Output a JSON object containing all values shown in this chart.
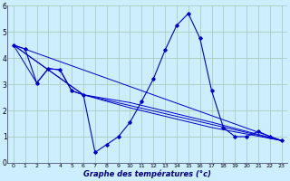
{
  "title": "Graphe des températures (°c)",
  "background_color": "#cceeff",
  "grid_color": "#aaccbb",
  "line_color": "#0000cc",
  "xlim": [
    -0.5,
    23.5
  ],
  "ylim": [
    0,
    6
  ],
  "xticks": [
    0,
    1,
    2,
    3,
    4,
    5,
    6,
    7,
    8,
    9,
    10,
    11,
    12,
    13,
    14,
    15,
    16,
    17,
    18,
    19,
    20,
    21,
    22,
    23
  ],
  "yticks": [
    0,
    1,
    2,
    3,
    4,
    5,
    6
  ],
  "main_curve": {
    "x": [
      0,
      1,
      2,
      3,
      4,
      5,
      6,
      7,
      8,
      9,
      10,
      11,
      12,
      13,
      14,
      15,
      16,
      17,
      18,
      19,
      20,
      21,
      22,
      23
    ],
    "y": [
      4.5,
      4.35,
      3.05,
      3.6,
      3.55,
      2.75,
      2.6,
      0.4,
      0.7,
      1.0,
      1.55,
      2.35,
      3.2,
      4.3,
      5.25,
      5.7,
      4.75,
      2.75,
      1.35,
      1.0,
      1.0,
      1.2,
      1.0,
      0.85
    ]
  },
  "line1": {
    "x": [
      0,
      2,
      3,
      4,
      5,
      6,
      23
    ],
    "y": [
      4.5,
      3.05,
      3.6,
      3.55,
      2.75,
      2.6,
      0.85
    ]
  },
  "line2": {
    "x": [
      0,
      6,
      10,
      17,
      23
    ],
    "y": [
      4.5,
      2.6,
      2.3,
      1.55,
      0.85
    ]
  },
  "line3": {
    "x": [
      0,
      6,
      10,
      17,
      23
    ],
    "y": [
      4.5,
      2.6,
      2.1,
      1.35,
      0.85
    ]
  },
  "line4": {
    "x": [
      0,
      23
    ],
    "y": [
      4.5,
      0.85
    ]
  }
}
